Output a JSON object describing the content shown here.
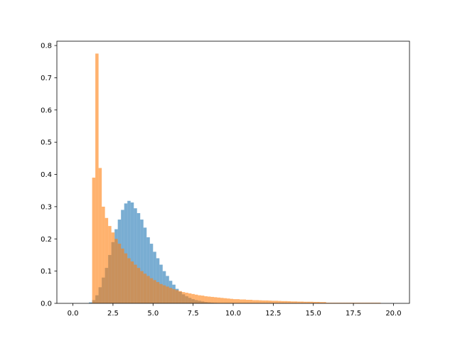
{
  "chart_data": {
    "type": "histogram",
    "bins": [
      0,
      0.2,
      0.4,
      0.6,
      0.8,
      1,
      1.2,
      1.4,
      1.6,
      1.8,
      2,
      2.2,
      2.4,
      2.6,
      2.8,
      3,
      3.2,
      3.4,
      3.6,
      3.8,
      4,
      4.2,
      4.4,
      4.6,
      4.8,
      5,
      5.2,
      5.4,
      5.6,
      5.8,
      6,
      6.2,
      6.4,
      6.6,
      6.8,
      7,
      7.2,
      7.4,
      7.6,
      7.8,
      8,
      8.2,
      8.4,
      8.6,
      8.8,
      9,
      9.2,
      9.4,
      9.6,
      9.8,
      10,
      10.2,
      10.4,
      10.6,
      10.8,
      11,
      11.2,
      11.4,
      11.6,
      11.8,
      12,
      12.2,
      12.4,
      12.6,
      12.8,
      13,
      13.2,
      13.4,
      13.6,
      13.8,
      14,
      14.2,
      14.4,
      14.6,
      14.8,
      15,
      15.2,
      15.4,
      15.6,
      15.8,
      16,
      16.2,
      16.4,
      16.6,
      16.8,
      17,
      17.2,
      17.4,
      17.6,
      17.8,
      18,
      18.2,
      18.4,
      18.6,
      18.8,
      19,
      19.2,
      19.4,
      19.6,
      19.8,
      20
    ],
    "series": [
      {
        "color": "#1f77b4",
        "values": [
          0,
          0,
          0,
          0,
          0,
          0.003,
          0.01,
          0.025,
          0.05,
          0.08,
          0.11,
          0.15,
          0.19,
          0.23,
          0.26,
          0.29,
          0.31,
          0.318,
          0.313,
          0.295,
          0.28,
          0.26,
          0.235,
          0.205,
          0.185,
          0.16,
          0.14,
          0.12,
          0.1,
          0.085,
          0.07,
          0.058,
          0.045,
          0.036,
          0.028,
          0.022,
          0.017,
          0.013,
          0.01,
          0.008,
          0.006,
          0.004,
          0.003,
          0.002,
          0.0015,
          0.001,
          0.0005,
          0.0005,
          0.0005,
          0.0005,
          0,
          0,
          0,
          0,
          0,
          0,
          0,
          0,
          0,
          0,
          0,
          0,
          0,
          0,
          0,
          0,
          0,
          0,
          0,
          0,
          0,
          0,
          0,
          0,
          0,
          0,
          0,
          0,
          0,
          0,
          0,
          0,
          0,
          0,
          0,
          0,
          0,
          0,
          0,
          0,
          0,
          0,
          0,
          0,
          0,
          0,
          0,
          0,
          0,
          0
        ]
      },
      {
        "color": "#ff7f0e",
        "values": [
          0,
          0,
          0,
          0,
          0,
          0,
          0.39,
          0.775,
          0.42,
          0.3,
          0.265,
          0.24,
          0.22,
          0.2,
          0.185,
          0.17,
          0.155,
          0.14,
          0.13,
          0.12,
          0.11,
          0.1,
          0.092,
          0.085,
          0.078,
          0.072,
          0.066,
          0.06,
          0.056,
          0.052,
          0.048,
          0.044,
          0.041,
          0.038,
          0.035,
          0.033,
          0.031,
          0.029,
          0.027,
          0.025,
          0.024,
          0.022,
          0.021,
          0.02,
          0.019,
          0.018,
          0.017,
          0.016,
          0.015,
          0.014,
          0.013,
          0.013,
          0.012,
          0.012,
          0.011,
          0.011,
          0.01,
          0.01,
          0.0095,
          0.009,
          0.009,
          0.0085,
          0.008,
          0.008,
          0.0075,
          0.007,
          0.007,
          0.0065,
          0.006,
          0.006,
          0.0055,
          0.0055,
          0.005,
          0.005,
          0.005,
          0.0045,
          0.0045,
          0.004,
          0.004,
          0.002,
          0.002,
          0.002,
          0.002,
          0.002,
          0.002,
          0.002,
          0.002,
          0.002,
          0.002,
          0.002,
          0.002,
          0.002,
          0.002,
          0.002,
          0.002,
          0.002,
          0,
          0,
          0,
          0
        ]
      }
    ],
    "xlim": [
      -1,
      21
    ],
    "xticks": [
      {
        "value": 0,
        "label": "0.0"
      },
      2.5,
      {
        "value": 5,
        "label": "5.0"
      },
      7.5,
      {
        "value": 10,
        "label": "10.0"
      },
      12.5,
      {
        "value": 15,
        "label": "15.0"
      },
      17.5,
      {
        "value": 20,
        "label": "20.0"
      }
    ],
    "ylim": [
      0,
      0.8134
    ],
    "yticks": [
      {
        "value": 0,
        "label": "0.0"
      },
      0.1,
      0.2,
      0.3,
      0.4,
      0.5,
      0.6,
      0.7,
      0.8
    ],
    "opacity": 0.6
  }
}
